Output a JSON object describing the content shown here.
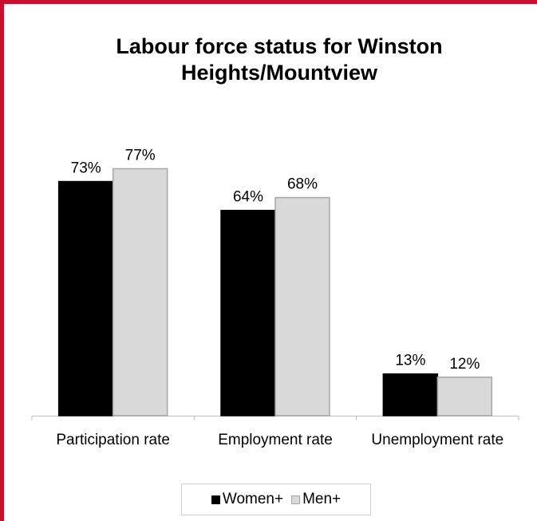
{
  "chart_data": {
    "type": "bar",
    "title": "Labour force status for Winston Heights/Mountview",
    "categories": [
      "Participation rate",
      "Employment rate",
      "Unemployment rate"
    ],
    "series": [
      {
        "name": "Women+",
        "values": [
          73,
          64,
          13
        ],
        "labels": [
          "73%",
          "64%",
          "13%"
        ],
        "color": "#000000"
      },
      {
        "name": "Men+",
        "values": [
          77,
          68,
          12
        ],
        "labels": [
          "77%",
          "68%",
          "12%"
        ],
        "color": "#d9d9d9"
      }
    ],
    "ylim": [
      0,
      100
    ],
    "grid": false,
    "legend_position": "bottom"
  },
  "colors": {
    "border_accent": "#c8102e",
    "men_bar_stroke": "#a6a6a6"
  }
}
